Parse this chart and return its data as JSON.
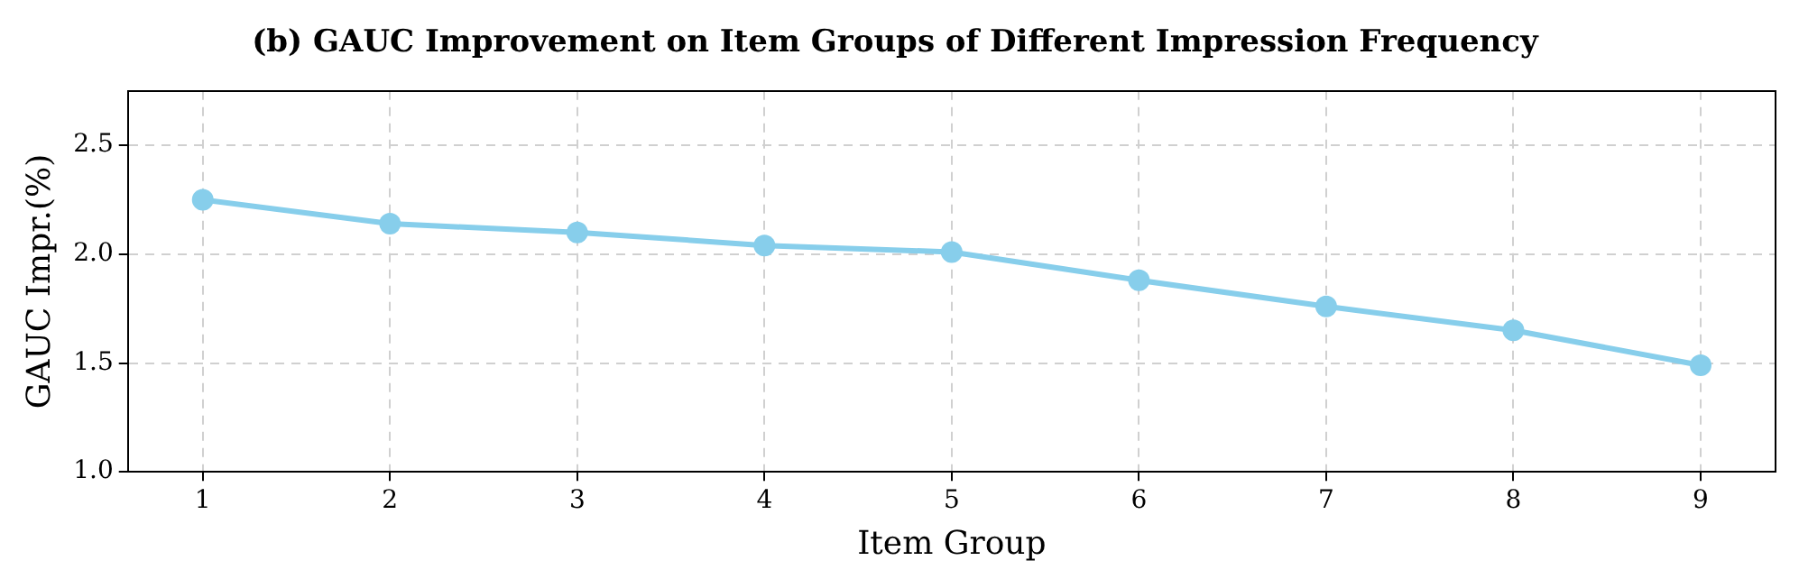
{
  "chart_data": {
    "type": "line",
    "title": "(b) GAUC Improvement on Item Groups of Different Impression Frequency",
    "xlabel": "Item Group",
    "ylabel": "GAUC Impr.(%)",
    "x": [
      1,
      2,
      3,
      4,
      5,
      6,
      7,
      8,
      9
    ],
    "series": [
      {
        "color": "#87ceeb",
        "values": [
          2.25,
          2.14,
          2.1,
          2.04,
          2.01,
          1.88,
          1.76,
          1.65,
          1.49
        ]
      }
    ],
    "xlim": [
      0.6,
      9.4
    ],
    "ylim": [
      1.0,
      2.75
    ],
    "xticks": [
      1,
      2,
      3,
      4,
      5,
      6,
      7,
      8,
      9
    ],
    "yticks": [
      {
        "value": 1,
        "label": "1.0"
      },
      1.5,
      {
        "value": 2,
        "label": "2.0"
      },
      2.5
    ],
    "grid": true,
    "marker": "circle",
    "line_style": "solid"
  }
}
